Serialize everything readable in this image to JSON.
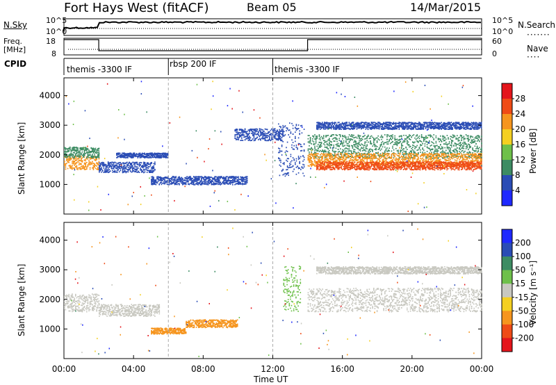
{
  "header": {
    "station": "Fort Hays West (fitACF)",
    "beam": "Beam 05",
    "date": "14/Mar/2015"
  },
  "top_panels": {
    "nsky_label": "N.Sky",
    "nsky_top": "10^5",
    "nsky_bottom": "10^0",
    "nsearch_label": "N.Search",
    "nsearch_top": "10^5",
    "nsearch_bottom": "10^0",
    "freq_label_1": "Freq.",
    "freq_label_2": "[MHz]",
    "freq_top": "18",
    "freq_bottom": "8",
    "nave_label": "Nave",
    "nave_top": "60",
    "nave_bottom": "0",
    "cpid_label": "CPID",
    "cpid_segments": [
      {
        "label": "themis -3300 IF",
        "start_hour": 0,
        "end_hour": 6
      },
      {
        "label": "rbsp 200 IF",
        "start_hour": 6,
        "end_hour": 12
      },
      {
        "label": "themis -3300 IF",
        "start_hour": 12,
        "end_hour": 24
      }
    ]
  },
  "chart_data": [
    {
      "type": "heatmap",
      "name": "Power",
      "ylabel": "Slant Range [km]",
      "ylim": [
        0,
        4600
      ],
      "xlim_hours": [
        0,
        24
      ],
      "yticks": [
        "1000",
        "2000",
        "3000",
        "4000"
      ],
      "ytick_values": [
        1000,
        2000,
        3000,
        4000
      ],
      "colorbar_label": "Power [dB]",
      "colorbar_ticks": [
        "4",
        "8",
        "12",
        "16",
        "20",
        "24",
        "28"
      ],
      "colorbar_colors": [
        "#1e28ff",
        "#2a4cb5",
        "#3d8c63",
        "#6ec04a",
        "#f4d021",
        "#f6951e",
        "#ef4b16",
        "#e4151b"
      ],
      "bands": [
        {
          "start_hour": 0.0,
          "end_hour": 2.0,
          "center_km": 1750,
          "half_width_km": 230,
          "color": "#f6951e"
        },
        {
          "start_hour": 0.0,
          "end_hour": 2.0,
          "center_km": 2100,
          "half_width_km": 180,
          "color": "#3d8c63"
        },
        {
          "start_hour": 2.0,
          "end_hour": 5.2,
          "center_km": 1600,
          "half_width_km": 180,
          "color": "#2a4cb5"
        },
        {
          "start_hour": 3.0,
          "end_hour": 6.0,
          "center_km": 2000,
          "half_width_km": 80,
          "color": "#2a4cb5"
        },
        {
          "start_hour": 5.0,
          "end_hour": 10.5,
          "center_km": 1150,
          "half_width_km": 140,
          "color": "#2a4cb5"
        },
        {
          "start_hour": 9.8,
          "end_hour": 12.6,
          "center_km": 2700,
          "half_width_km": 200,
          "color": "#2a4cb5"
        },
        {
          "start_hour": 12.3,
          "end_hour": 13.8,
          "center_km": 2200,
          "half_width_km": 900,
          "color": "#2a4cb5"
        },
        {
          "start_hour": 14.0,
          "end_hour": 24.0,
          "center_km": 2300,
          "half_width_km": 400,
          "color": "#3d8c63"
        },
        {
          "start_hour": 14.0,
          "end_hour": 24.0,
          "center_km": 1850,
          "half_width_km": 220,
          "color": "#f6951e"
        },
        {
          "start_hour": 14.5,
          "end_hour": 24.0,
          "center_km": 1650,
          "half_width_km": 140,
          "color": "#ef4b16"
        },
        {
          "start_hour": 14.5,
          "end_hour": 24.0,
          "center_km": 3000,
          "half_width_km": 120,
          "color": "#2a4cb5"
        }
      ]
    },
    {
      "type": "heatmap",
      "name": "Velocity",
      "ylabel": "Slant Range [km]",
      "ylim": [
        0,
        4600
      ],
      "xlim_hours": [
        0,
        24
      ],
      "yticks": [
        "1000",
        "2000",
        "3000",
        "4000"
      ],
      "ytick_values": [
        1000,
        2000,
        3000,
        4000
      ],
      "colorbar_label": "Velocity [m s⁻¹]",
      "colorbar_ticks": [
        "-200",
        "-100",
        "-50",
        "-15",
        "15",
        "50",
        "100",
        "200"
      ],
      "colorbar_colors": [
        "#e4151b",
        "#ef4b16",
        "#f6951e",
        "#f4d021",
        "#c8c8c0",
        "#6ec04a",
        "#3d8c63",
        "#2a4cb5",
        "#1e28ff"
      ],
      "bands": [
        {
          "start_hour": 0.0,
          "end_hour": 2.0,
          "center_km": 1900,
          "half_width_km": 300,
          "color": "#c8c8c0"
        },
        {
          "start_hour": 2.0,
          "end_hour": 5.5,
          "center_km": 1650,
          "half_width_km": 200,
          "color": "#c8c8c0"
        },
        {
          "start_hour": 5.0,
          "end_hour": 7.0,
          "center_km": 950,
          "half_width_km": 100,
          "color": "#f6951e"
        },
        {
          "start_hour": 7.0,
          "end_hour": 10.0,
          "center_km": 1200,
          "half_width_km": 130,
          "color": "#f6951e"
        },
        {
          "start_hour": 12.6,
          "end_hour": 13.6,
          "center_km": 2400,
          "half_width_km": 800,
          "color": "#6ec04a"
        },
        {
          "start_hour": 14.0,
          "end_hour": 24.0,
          "center_km": 2000,
          "half_width_km": 400,
          "color": "#c8c8c0"
        },
        {
          "start_hour": 14.5,
          "end_hour": 24.0,
          "center_km": 3000,
          "half_width_km": 120,
          "color": "#c8c8c0"
        }
      ]
    }
  ],
  "xaxis": {
    "label": "Time UT",
    "ticks": [
      "00:00",
      "04:00",
      "08:00",
      "12:00",
      "16:00",
      "20:00",
      "00:00"
    ],
    "tick_hours": [
      0,
      4,
      8,
      12,
      16,
      20,
      24
    ]
  }
}
